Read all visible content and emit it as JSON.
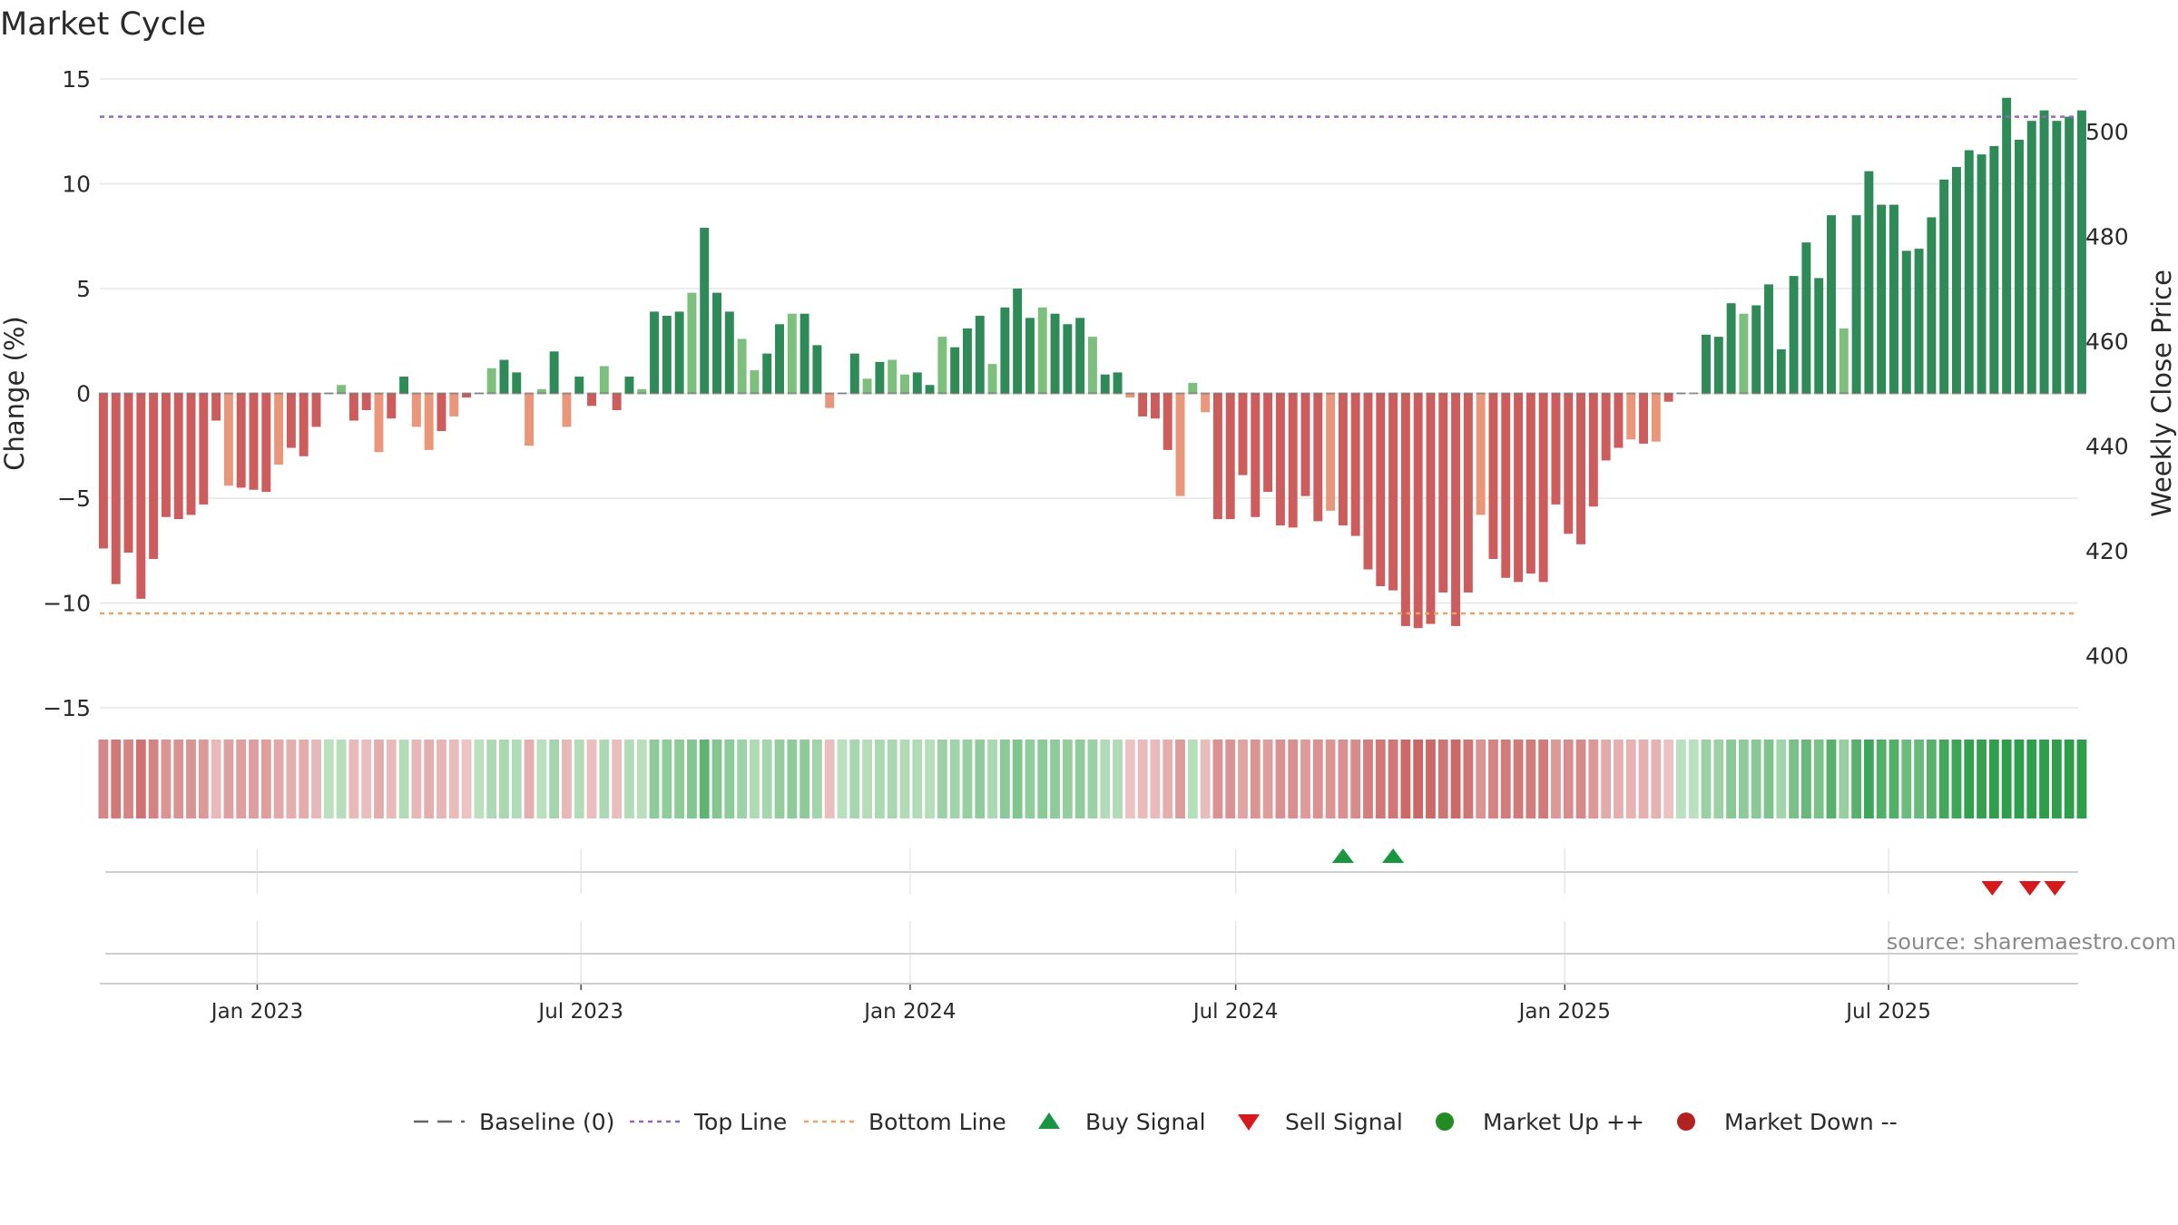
{
  "chart_data": {
    "type": "bar",
    "title": "Market Cycle",
    "ylabel": "Change (%)",
    "y2label": "Weekly Close Price",
    "ylim": [
      -15,
      15
    ],
    "y2lim": [
      390,
      510
    ],
    "y_ticks": [
      15,
      10,
      5,
      0,
      -5,
      -10,
      -15
    ],
    "y_tick_labels": [
      "15",
      "10",
      "5",
      "0",
      "−5",
      "−10",
      "−15"
    ],
    "y2_ticks": [
      400,
      420,
      440,
      460,
      480,
      500
    ],
    "x_range": [
      "2022-10-05",
      "2025-10-15"
    ],
    "x_ticks": [
      "2023-01-01",
      "2023-07-01",
      "2024-01-01",
      "2024-07-01",
      "2025-01-01",
      "2025-07-01"
    ],
    "x_tick_labels": [
      "Jan 2023",
      "Jul 2023",
      "Jan 2024",
      "Jul 2024",
      "Jan 2025",
      "Jul 2025"
    ],
    "top_line": 13.2,
    "bottom_line": -10.5,
    "grid": true,
    "bars_start_date": "2022-10-07",
    "bar_interval_days": 7,
    "values": [
      -7.4,
      -9.1,
      -7.6,
      -9.8,
      -7.9,
      -5.9,
      -6,
      -5.8,
      -5.3,
      -1.3,
      -4.4,
      -4.5,
      -4.6,
      -4.7,
      -3.4,
      -2.6,
      -3,
      -1.6,
      0,
      0.4,
      -1.3,
      -0.8,
      -2.8,
      -1.2,
      0.8,
      -1.6,
      -2.7,
      -1.8,
      -1.1,
      -0.2,
      0,
      1.2,
      1.6,
      1,
      -2.5,
      0.2,
      2,
      -1.6,
      0.8,
      -0.6,
      1.3,
      -0.8,
      0.8,
      0.2,
      3.9,
      3.7,
      3.9,
      4.8,
      7.9,
      4.8,
      3.9,
      2.6,
      1.1,
      1.9,
      3.3,
      3.8,
      3.8,
      2.3,
      -0.7,
      0,
      1.9,
      0.7,
      1.5,
      1.6,
      0.9,
      1,
      0.4,
      2.7,
      2.2,
      3.1,
      3.7,
      1.4,
      4.1,
      5,
      3.6,
      4.1,
      3.8,
      3.3,
      3.6,
      2.7,
      0.9,
      1,
      -0.2,
      -1.1,
      -1.2,
      -2.7,
      -4.9,
      0.5,
      -0.9,
      -6,
      -6,
      -3.9,
      -5.9,
      -4.7,
      -6.3,
      -6.4,
      -4.9,
      -6.1,
      -5.6,
      -6.3,
      -6.8,
      -8.4,
      -9.2,
      -9.4,
      -11.1,
      -11.2,
      -11,
      -9.5,
      -11.1,
      -9.5,
      -5.8,
      -7.9,
      -8.8,
      -9,
      -8.6,
      -9,
      -5.3,
      -6.7,
      -7.2,
      -5.4,
      -3.2,
      -2.6,
      -2.2,
      -2.4,
      -2.3,
      -0.4,
      0,
      0,
      2.8,
      2.7,
      4.3,
      3.8,
      4.2,
      5.2,
      2.1,
      5.6,
      7.2,
      5.5,
      8.5,
      3.1,
      8.5,
      10.6,
      9,
      9,
      6.8,
      6.9,
      8.4,
      10.2,
      10.8,
      11.6,
      11.4,
      11.8,
      14.1,
      12.1,
      13,
      13.5,
      13,
      13.2,
      13.5
    ],
    "signals": {
      "buy": [
        "2024-08-30",
        "2024-09-27"
      ],
      "sell": [
        "2025-08-28",
        "2025-09-18",
        "2025-10-02"
      ]
    },
    "series": [
      {
        "name": "Baseline (0)"
      },
      {
        "name": "Top Line"
      },
      {
        "name": "Bottom Line"
      },
      {
        "name": "Buy Signal"
      },
      {
        "name": "Sell Signal"
      },
      {
        "name": "Market Up ++"
      },
      {
        "name": "Market Down --"
      }
    ],
    "legend_position": "bottom",
    "source": "source: sharemaestro.com"
  },
  "colors": {
    "up_strong": "#2e8b57",
    "up_light": "#7dbf7d",
    "down_strong": "#cd5c5c",
    "down_light": "#e9967a",
    "top_line": "#9467bd",
    "bottom_line": "#f0a060",
    "buy": "#1a9641",
    "sell": "#d7191c",
    "market_up": "#228b22",
    "market_down": "#b22222",
    "baseline": "#666666",
    "grid": "#e6e6e6",
    "text": "#2a2a2a",
    "source": "#8a8a8a"
  }
}
